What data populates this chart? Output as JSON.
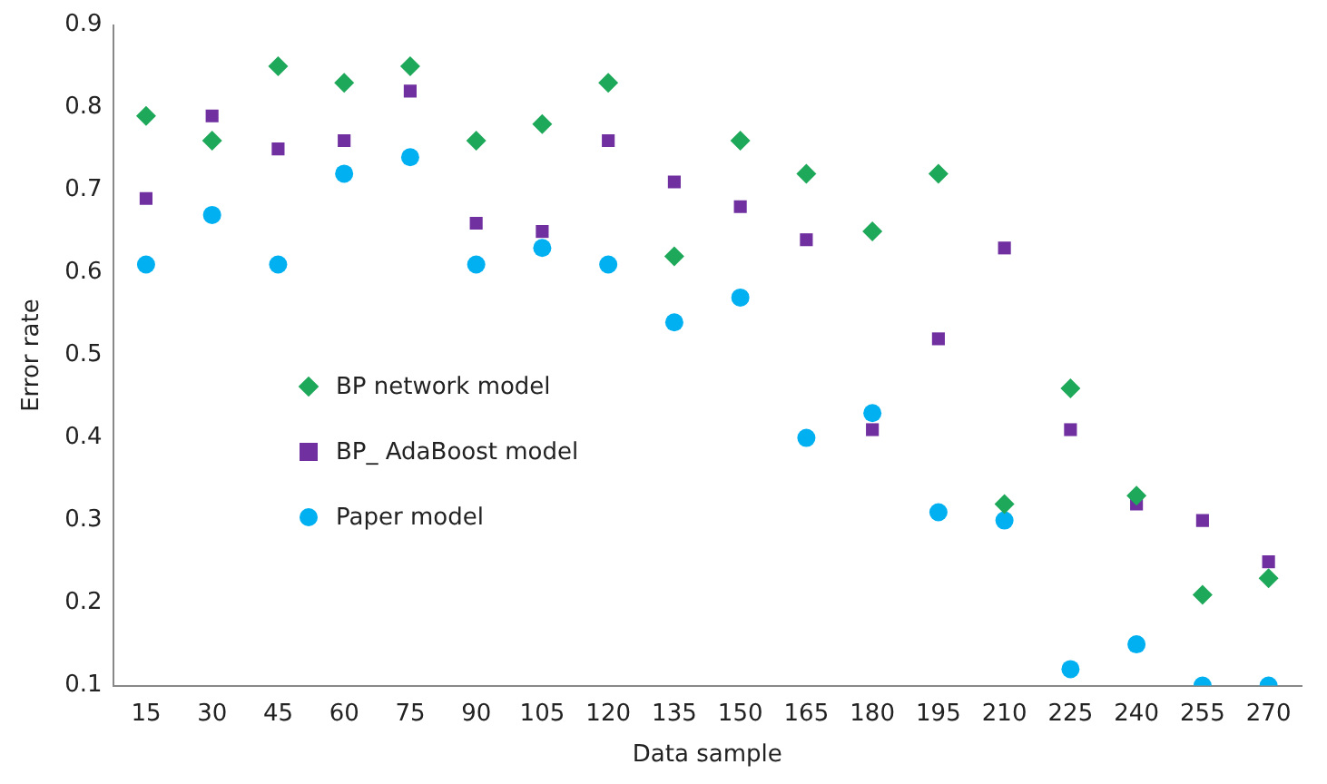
{
  "chart_data": {
    "type": "scatter",
    "xlabel": "Data sample",
    "ylabel": "Error rate",
    "categories": [
      "15",
      "30",
      "45",
      "60",
      "75",
      "90",
      "105",
      "120",
      "135",
      "150",
      "165",
      "180",
      "195",
      "210",
      "225",
      "240",
      "255",
      "270"
    ],
    "ylim": [
      0.1,
      0.9
    ],
    "yticks": [
      0.1,
      0.2,
      0.3,
      0.4,
      0.5,
      0.6,
      0.7,
      0.8,
      0.9
    ],
    "grid": false,
    "legend": "center left",
    "series": [
      {
        "name": "BP network model",
        "color": "#1ea85a",
        "marker": "diamond",
        "values": [
          0.79,
          0.76,
          0.85,
          0.83,
          0.85,
          0.76,
          0.78,
          0.83,
          0.62,
          0.76,
          0.72,
          0.65,
          0.72,
          0.32,
          0.46,
          0.33,
          0.21,
          0.23
        ]
      },
      {
        "name": "BP_ AdaBoost model",
        "color": "#7030a0",
        "marker": "square",
        "values": [
          0.69,
          0.79,
          0.75,
          0.76,
          0.82,
          0.66,
          0.65,
          0.76,
          0.71,
          0.68,
          0.64,
          0.41,
          0.52,
          0.63,
          0.41,
          0.32,
          0.3,
          0.25
        ]
      },
      {
        "name": "Paper model",
        "color": "#00b0f0",
        "marker": "circle",
        "values": [
          0.61,
          0.67,
          0.61,
          0.72,
          0.74,
          0.61,
          0.63,
          0.61,
          0.54,
          0.57,
          0.4,
          0.43,
          0.31,
          0.3,
          0.12,
          0.15,
          0.1,
          0.1
        ]
      }
    ]
  }
}
